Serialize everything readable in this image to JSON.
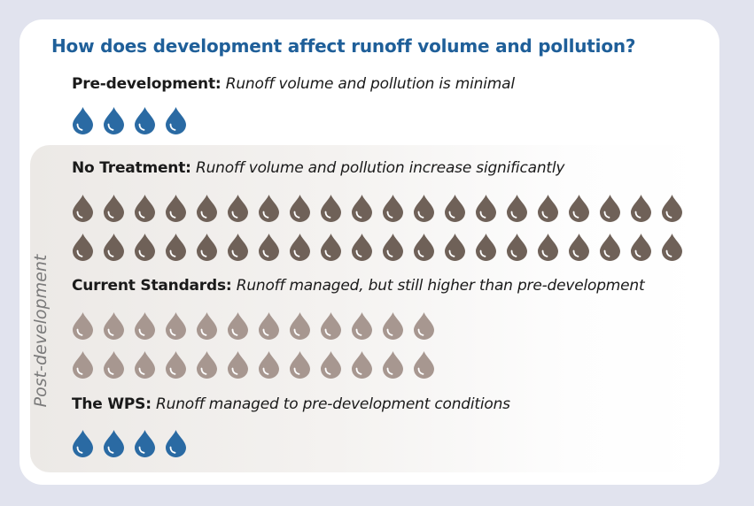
{
  "title": "How does development affect runoff volume and pollution?",
  "post_label": "Post-development",
  "colors": {
    "blue": "#2a6aa3",
    "dark_brown": "#6f6158",
    "light_brown": "#a79790"
  },
  "sections": {
    "pre": {
      "name": "Pre-development:",
      "desc": "Runoff volume and pollution is minimal",
      "drop_count": 4,
      "drop_color": "#2a6aa3"
    },
    "no_treatment": {
      "name": "No Treatment:",
      "desc": "Runoff volume and pollution increase significantly",
      "drop_count": 40,
      "drop_color": "#6f6158"
    },
    "current": {
      "name": "Current Standards:",
      "desc": "Runoff managed, but still higher than pre-development",
      "drop_count": 24,
      "drop_color": "#a79790"
    },
    "wps": {
      "name": "The WPS:",
      "desc": "Runoff managed to pre-development conditions",
      "drop_count": 4,
      "drop_color": "#2a6aa3"
    }
  }
}
